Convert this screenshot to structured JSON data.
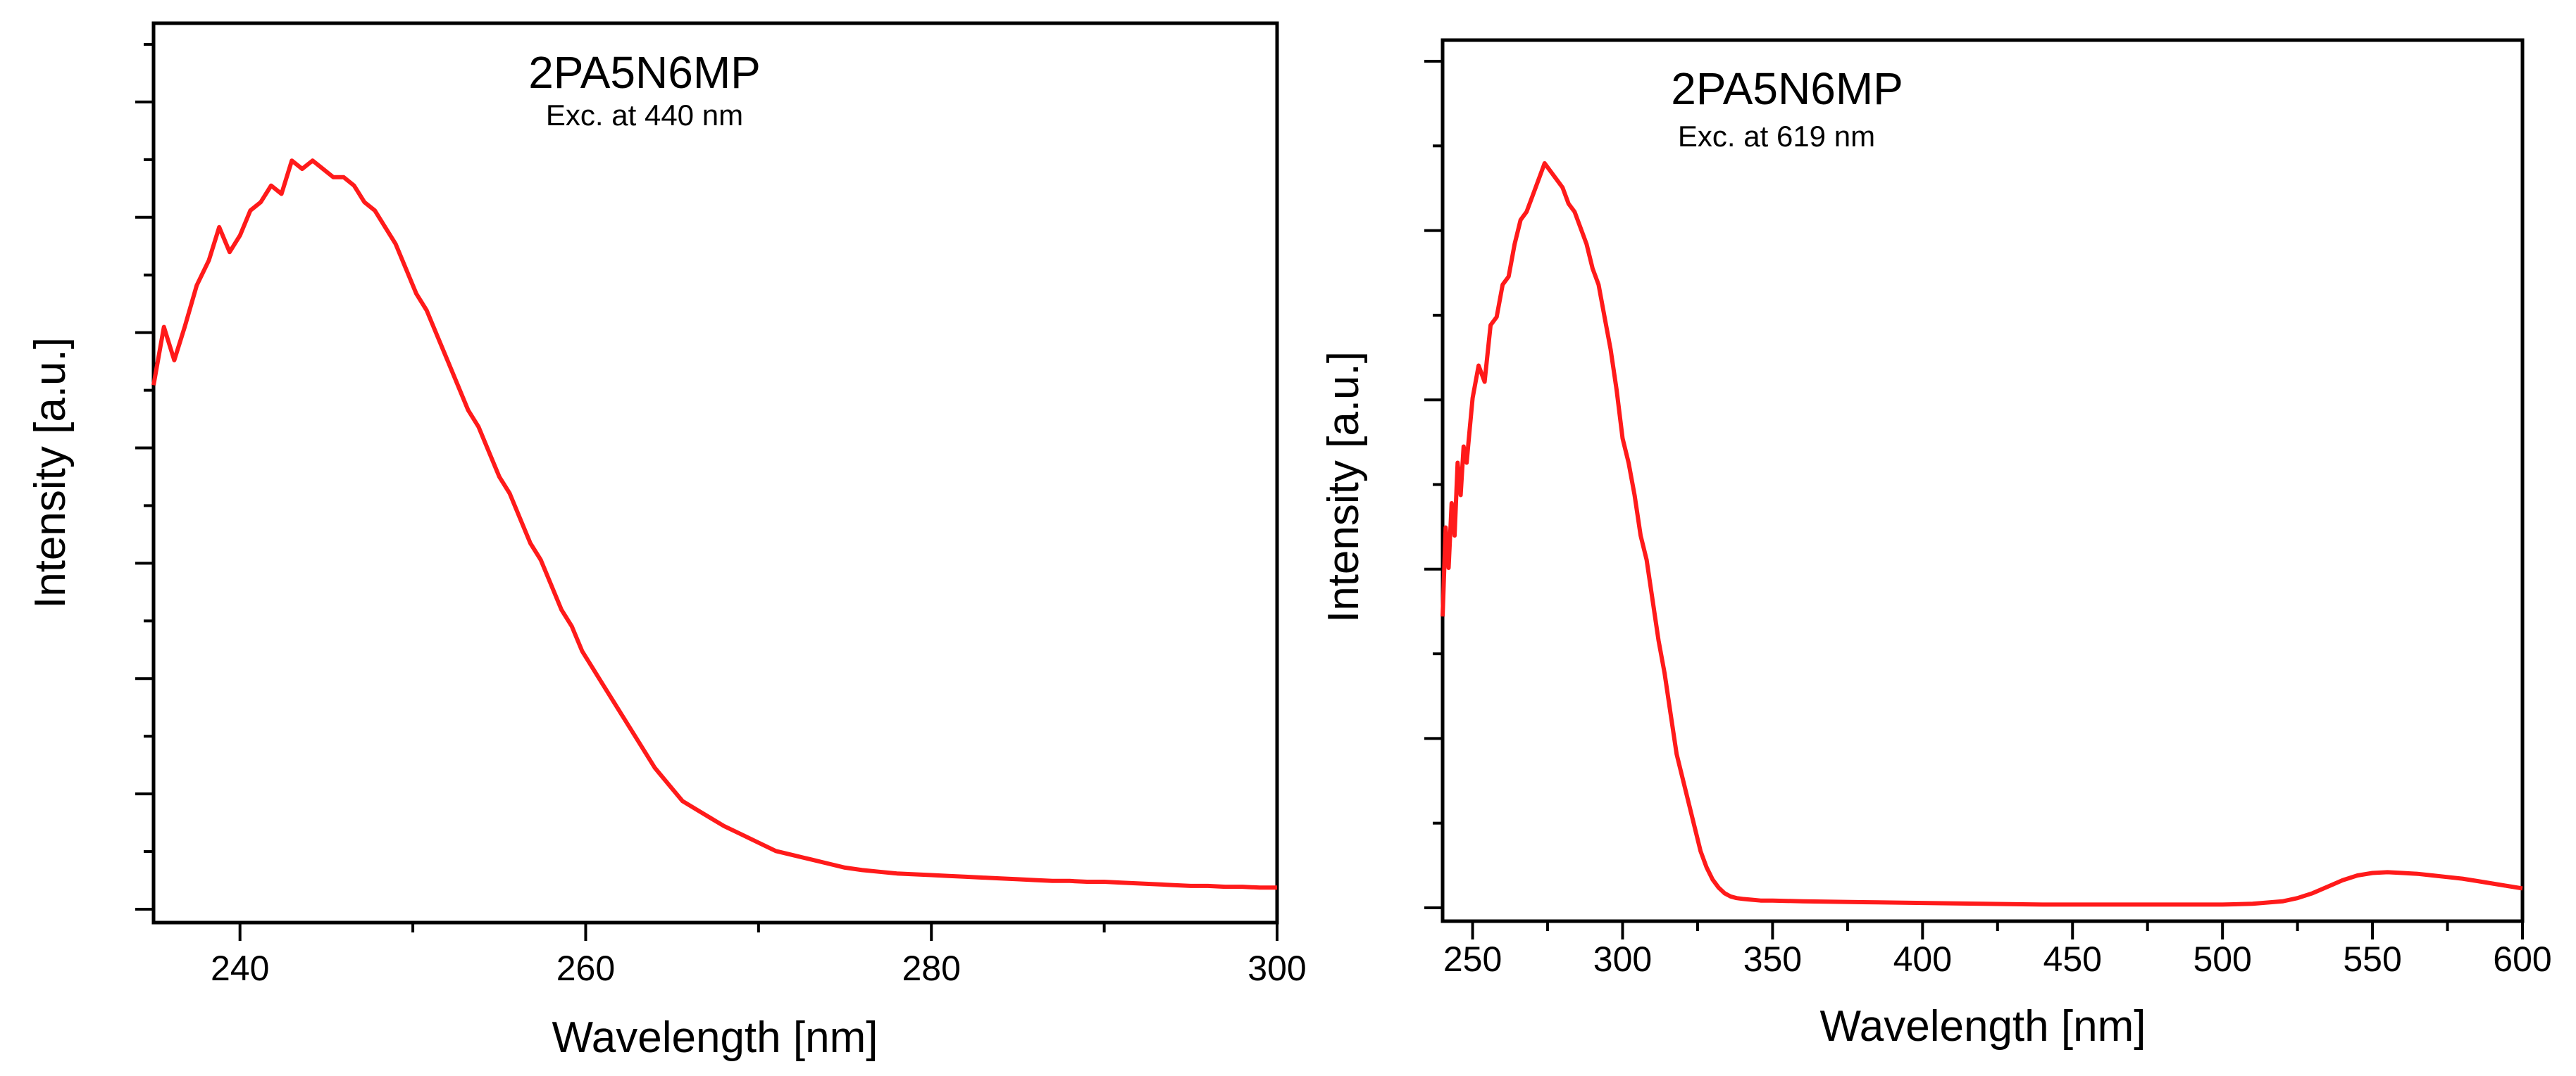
{
  "chart_data": [
    {
      "type": "line",
      "title": "2PA5N6MP",
      "subtitle": "Exc. at 440 nm",
      "xlabel": "Wavelength [nm]",
      "ylabel": "Intensity [a.u.]",
      "xlim": [
        235,
        300
      ],
      "ylim": [
        0,
        1.0
      ],
      "xticks": [
        240,
        260,
        280,
        300
      ],
      "xtick_labels": [
        "240",
        "260",
        "280",
        "300"
      ],
      "yticks_unlabeled": 16,
      "grid": false,
      "color": "#ff1a1a",
      "series": [
        {
          "name": "Exc. at 440 nm",
          "x": [
            235.0,
            235.6,
            236.2,
            236.8,
            237.5,
            238.2,
            238.8,
            239.4,
            240.0,
            240.6,
            241.2,
            241.8,
            242.4,
            243.0,
            243.6,
            244.2,
            244.8,
            245.4,
            246.0,
            246.6,
            247.2,
            247.8,
            248.4,
            249.0,
            249.6,
            250.2,
            250.8,
            251.4,
            252.0,
            252.6,
            253.2,
            253.8,
            254.4,
            255.0,
            255.6,
            256.2,
            256.8,
            257.4,
            258.0,
            258.6,
            259.2,
            259.8,
            260.4,
            261.0,
            261.6,
            262.2,
            262.8,
            263.4,
            264.0,
            264.8,
            265.6,
            266.4,
            267.2,
            268.0,
            269.0,
            270.0,
            271.0,
            272.0,
            273.0,
            274.0,
            275.0,
            276.0,
            277.0,
            278.0,
            279.0,
            280.0,
            281.0,
            282.0,
            283.0,
            284.0,
            285.0,
            286.0,
            287.0,
            288.0,
            289.0,
            290.0,
            291.0,
            292.0,
            293.0,
            294.0,
            295.0,
            296.0,
            297.0,
            298.0,
            299.0,
            300.0
          ],
          "y": [
            0.63,
            0.7,
            0.66,
            0.7,
            0.75,
            0.78,
            0.82,
            0.79,
            0.81,
            0.84,
            0.85,
            0.87,
            0.86,
            0.9,
            0.89,
            0.9,
            0.89,
            0.88,
            0.88,
            0.87,
            0.85,
            0.84,
            0.82,
            0.8,
            0.77,
            0.74,
            0.72,
            0.69,
            0.66,
            0.63,
            0.6,
            0.58,
            0.55,
            0.52,
            0.5,
            0.47,
            0.44,
            0.42,
            0.39,
            0.36,
            0.34,
            0.31,
            0.29,
            0.27,
            0.25,
            0.23,
            0.21,
            0.19,
            0.17,
            0.15,
            0.13,
            0.12,
            0.11,
            0.1,
            0.09,
            0.08,
            0.07,
            0.065,
            0.06,
            0.055,
            0.05,
            0.047,
            0.045,
            0.043,
            0.042,
            0.041,
            0.04,
            0.039,
            0.038,
            0.037,
            0.036,
            0.035,
            0.034,
            0.034,
            0.033,
            0.033,
            0.032,
            0.031,
            0.03,
            0.029,
            0.028,
            0.028,
            0.027,
            0.027,
            0.026,
            0.026
          ]
        }
      ]
    },
    {
      "type": "line",
      "title": "2PA5N6MP",
      "subtitle": "Exc. at 619 nm",
      "xlabel": "Wavelength [nm]",
      "ylabel": "Intensity [a.u.]",
      "xlim": [
        240,
        600
      ],
      "ylim": [
        0,
        1.0
      ],
      "xticks": [
        250,
        300,
        350,
        400,
        450,
        500,
        550,
        600
      ],
      "xtick_labels": [
        "250",
        "300",
        "350",
        "400",
        "450",
        "500",
        "550",
        "600"
      ],
      "yticks_unlabeled": 11,
      "grid": false,
      "color": "#ff1a1a",
      "series": [
        {
          "name": "Exc. at 619 nm",
          "x": [
            240,
            241,
            242,
            243,
            244,
            245,
            246,
            247,
            248,
            249,
            250,
            252,
            254,
            256,
            258,
            260,
            262,
            264,
            266,
            268,
            270,
            272,
            274,
            276,
            278,
            280,
            282,
            284,
            286,
            288,
            290,
            292,
            294,
            296,
            298,
            300,
            302,
            304,
            306,
            308,
            310,
            312,
            314,
            316,
            318,
            320,
            322,
            324,
            326,
            328,
            330,
            332,
            334,
            336,
            338,
            340,
            343,
            346,
            350,
            360,
            380,
            400,
            420,
            440,
            460,
            480,
            500,
            510,
            520,
            525,
            530,
            535,
            540,
            545,
            550,
            555,
            560,
            565,
            570,
            575,
            580,
            585,
            590,
            595,
            600
          ],
          "y": [
            0.36,
            0.47,
            0.42,
            0.5,
            0.46,
            0.55,
            0.51,
            0.57,
            0.55,
            0.59,
            0.63,
            0.67,
            0.65,
            0.72,
            0.73,
            0.77,
            0.78,
            0.82,
            0.85,
            0.86,
            0.88,
            0.9,
            0.92,
            0.91,
            0.9,
            0.89,
            0.87,
            0.86,
            0.84,
            0.82,
            0.79,
            0.77,
            0.73,
            0.69,
            0.64,
            0.58,
            0.55,
            0.51,
            0.46,
            0.43,
            0.38,
            0.33,
            0.29,
            0.24,
            0.19,
            0.16,
            0.13,
            0.1,
            0.07,
            0.05,
            0.035,
            0.025,
            0.018,
            0.014,
            0.012,
            0.011,
            0.01,
            0.009,
            0.009,
            0.008,
            0.007,
            0.006,
            0.005,
            0.004,
            0.004,
            0.004,
            0.004,
            0.005,
            0.008,
            0.012,
            0.018,
            0.026,
            0.034,
            0.04,
            0.043,
            0.044,
            0.043,
            0.042,
            0.04,
            0.038,
            0.036,
            0.033,
            0.03,
            0.027,
            0.024
          ]
        }
      ]
    }
  ]
}
